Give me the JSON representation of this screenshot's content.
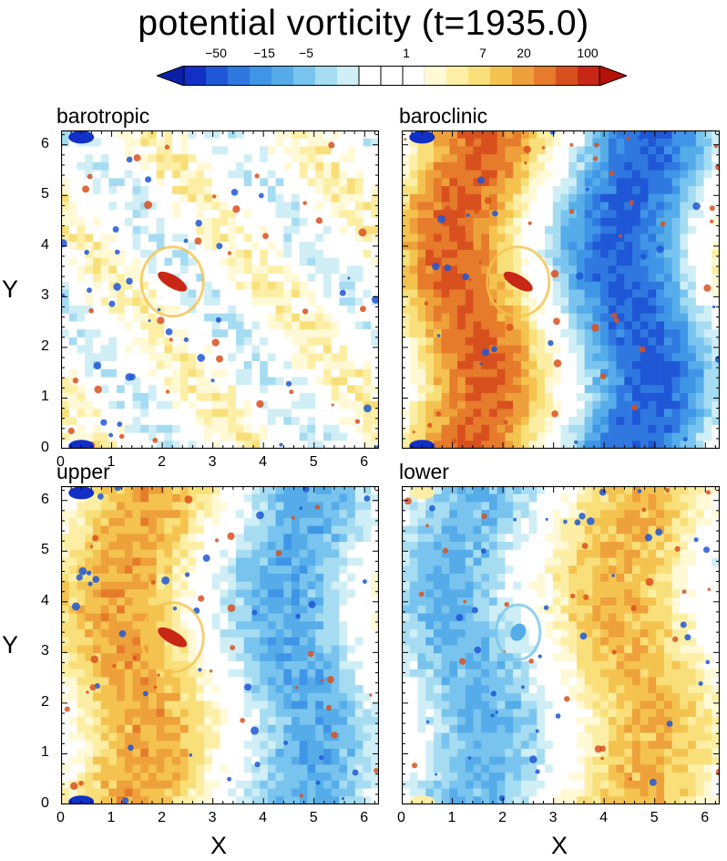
{
  "figure": {
    "title": "potential vorticity (t=1935.0)"
  },
  "colorbar": {
    "tick_labels": [
      "−50",
      "−15",
      "−5",
      "1",
      "7",
      "20",
      "100"
    ],
    "colors": [
      "#1230c6",
      "#1f57d6",
      "#2f78e0",
      "#3f95e6",
      "#55ace9",
      "#79c4ee",
      "#a6dcf2",
      "#cfeef6",
      "#ffffff",
      "#ffffff",
      "#ffffff",
      "#fff9d6",
      "#fcefa5",
      "#f9df79",
      "#f4c34f",
      "#eea03a",
      "#e57b2b",
      "#d9501f",
      "#c92716"
    ]
  },
  "chart_data": [
    {
      "type": "heatmap",
      "title": "barotropic",
      "xlabel": "",
      "ylabel": "Y",
      "xlim": [
        0,
        6.283
      ],
      "ylim": [
        0,
        6.283
      ],
      "xticks": [
        "0",
        "1",
        "2",
        "3",
        "4",
        "5",
        "6"
      ],
      "yticks": [
        "0",
        "1",
        "2",
        "3",
        "4",
        "5",
        "6"
      ],
      "features": {
        "vortex_center": [
          2.2,
          3.3
        ],
        "field": "mixed small-scale"
      }
    },
    {
      "type": "heatmap",
      "title": "baroclinic",
      "xlabel": "",
      "ylabel": "",
      "xlim": [
        0,
        6.283
      ],
      "ylim": [
        0,
        6.283
      ],
      "xticks": [],
      "yticks": [],
      "features": {
        "vortex_center": [
          2.3,
          3.3
        ],
        "field": "positive band left, negative band right"
      }
    },
    {
      "type": "heatmap",
      "title": "upper",
      "xlabel": "X",
      "ylabel": "Y",
      "xlim": [
        0,
        6.283
      ],
      "ylim": [
        0,
        6.283
      ],
      "xticks": [
        "0",
        "1",
        "2",
        "3",
        "4",
        "5",
        "6"
      ],
      "yticks": [
        "0",
        "1",
        "2",
        "3",
        "4",
        "5",
        "6"
      ],
      "features": {
        "vortex_center": [
          2.2,
          3.3
        ],
        "field": "positive band left, light negative right"
      }
    },
    {
      "type": "heatmap",
      "title": "lower",
      "xlabel": "X",
      "ylabel": "",
      "xlim": [
        0,
        6.283
      ],
      "ylim": [
        0,
        6.283
      ],
      "xticks": [
        "0",
        "1",
        "2",
        "3",
        "4",
        "5",
        "6"
      ],
      "yticks": [],
      "features": {
        "vortex_center": [
          2.3,
          3.4
        ],
        "field": "negative band left, positive band right"
      }
    }
  ]
}
